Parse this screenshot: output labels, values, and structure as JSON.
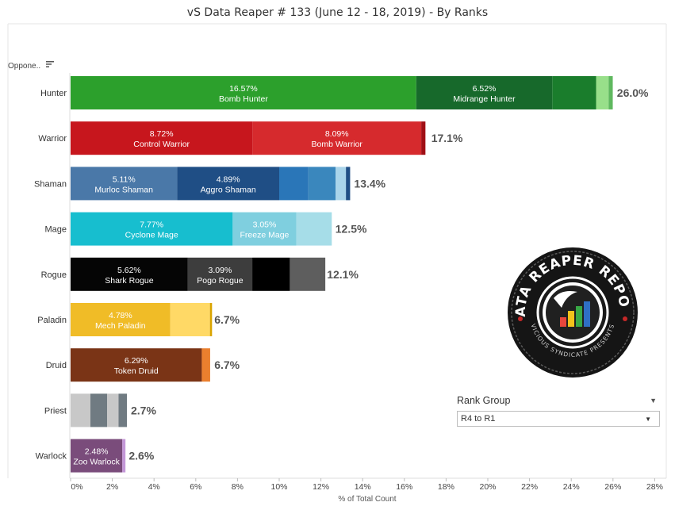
{
  "title": "vS Data Reaper #  133 (June 12 - 18, 2019) - By Ranks",
  "column_header": "Oppone..",
  "sort_icon": "sort-descending-icon",
  "logo": {
    "ring_text_top": "DATA REAPER REPORT",
    "ring_text_bottom": "VICIOUS SYNDICATE PRESENTS"
  },
  "filter": {
    "title": "Rank Group",
    "selected": "R4 to R1"
  },
  "chart_data": {
    "type": "bar",
    "orientation": "horizontal",
    "stacked": true,
    "xlabel": "% of Total Count",
    "ylabel": "",
    "xlim": [
      0,
      28
    ],
    "xticks": [
      "0%",
      "2%",
      "4%",
      "6%",
      "8%",
      "10%",
      "12%",
      "14%",
      "16%",
      "18%",
      "20%",
      "22%",
      "24%",
      "26%",
      "28%"
    ],
    "grid": false,
    "categories": [
      "Hunter",
      "Warrior",
      "Shaman",
      "Mage",
      "Rogue",
      "Paladin",
      "Druid",
      "Priest",
      "Warlock"
    ],
    "totals": [
      "26.0%",
      "17.1%",
      "13.4%",
      "12.5%",
      "12.1%",
      "6.7%",
      "6.7%",
      "2.7%",
      "2.6%"
    ],
    "rows": [
      {
        "class": "Hunter",
        "total": 26.0,
        "segments": [
          {
            "value": 16.57,
            "pct": "16.57%",
            "name": "Bomb Hunter",
            "color": "#2ca02c"
          },
          {
            "value": 6.52,
            "pct": "6.52%",
            "name": "Midrange Hunter",
            "color": "#17692b"
          },
          {
            "value": 2.1,
            "pct": "",
            "name": "",
            "color": "#1a7d2c"
          },
          {
            "value": 0.6,
            "pct": "",
            "name": "",
            "color": "#98df8a"
          },
          {
            "value": 0.2,
            "pct": "",
            "name": "",
            "color": "#5fb85f"
          }
        ]
      },
      {
        "class": "Warrior",
        "total": 17.1,
        "segments": [
          {
            "value": 8.72,
            "pct": "8.72%",
            "name": "Control Warrior",
            "color": "#c7161d"
          },
          {
            "value": 8.09,
            "pct": "8.09%",
            "name": "Bomb Warrior",
            "color": "#d62a2d"
          },
          {
            "value": 0.2,
            "pct": "",
            "name": "",
            "color": "#a00f15"
          }
        ]
      },
      {
        "class": "Shaman",
        "total": 13.4,
        "segments": [
          {
            "value": 5.11,
            "pct": "5.11%",
            "name": "Murloc Shaman",
            "color": "#4a78a8"
          },
          {
            "value": 4.89,
            "pct": "4.89%",
            "name": "Aggro Shaman",
            "color": "#1f4e85"
          },
          {
            "value": 1.4,
            "pct": "",
            "name": "",
            "color": "#2a76b8"
          },
          {
            "value": 1.3,
            "pct": "",
            "name": "",
            "color": "#3a87bd"
          },
          {
            "value": 0.5,
            "pct": "",
            "name": "",
            "color": "#a9d4ea"
          },
          {
            "value": 0.2,
            "pct": "",
            "name": "",
            "color": "#1f4e85"
          }
        ]
      },
      {
        "class": "Mage",
        "total": 12.5,
        "segments": [
          {
            "value": 7.77,
            "pct": "7.77%",
            "name": "Cyclone Mage",
            "color": "#17becf"
          },
          {
            "value": 3.05,
            "pct": "3.05%",
            "name": "Freeze Mage",
            "color": "#7fcfdf"
          },
          {
            "value": 1.7,
            "pct": "",
            "name": "",
            "color": "#a6dde8"
          }
        ]
      },
      {
        "class": "Rogue",
        "total": 12.1,
        "segments": [
          {
            "value": 5.62,
            "pct": "5.62%",
            "name": "Shark Rogue",
            "color": "#050505"
          },
          {
            "value": 3.09,
            "pct": "3.09%",
            "name": "Pogo Rogue",
            "color": "#3d3d3d"
          },
          {
            "value": 1.8,
            "pct": "",
            "name": "",
            "color": "#000000"
          },
          {
            "value": 1.7,
            "pct": "",
            "name": "",
            "color": "#5e5e5e"
          }
        ]
      },
      {
        "class": "Paladin",
        "total": 6.7,
        "segments": [
          {
            "value": 4.78,
            "pct": "4.78%",
            "name": "Mech Paladin",
            "color": "#f0bc27"
          },
          {
            "value": 1.9,
            "pct": "",
            "name": "",
            "color": "#ffd966"
          },
          {
            "value": 0.1,
            "pct": "",
            "name": "",
            "color": "#d9a400"
          }
        ]
      },
      {
        "class": "Druid",
        "total": 6.7,
        "segments": [
          {
            "value": 6.29,
            "pct": "6.29%",
            "name": "Token Druid",
            "color": "#7a3416"
          },
          {
            "value": 0.4,
            "pct": "",
            "name": "",
            "color": "#ea7f2e"
          }
        ]
      },
      {
        "class": "Priest",
        "total": 2.7,
        "segments": [
          {
            "value": 0.95,
            "pct": "",
            "name": "",
            "color": "#c8c8c8"
          },
          {
            "value": 0.8,
            "pct": "",
            "name": "",
            "color": "#707b82"
          },
          {
            "value": 0.55,
            "pct": "",
            "name": "",
            "color": "#c8c8c8"
          },
          {
            "value": 0.4,
            "pct": "",
            "name": "",
            "color": "#707b82"
          }
        ]
      },
      {
        "class": "Warlock",
        "total": 2.6,
        "segments": [
          {
            "value": 2.48,
            "pct": "2.48%",
            "name": "Zoo Warlock",
            "color": "#7a4c7b"
          },
          {
            "value": 0.15,
            "pct": "",
            "name": "",
            "color": "#c497d8"
          }
        ]
      }
    ]
  }
}
